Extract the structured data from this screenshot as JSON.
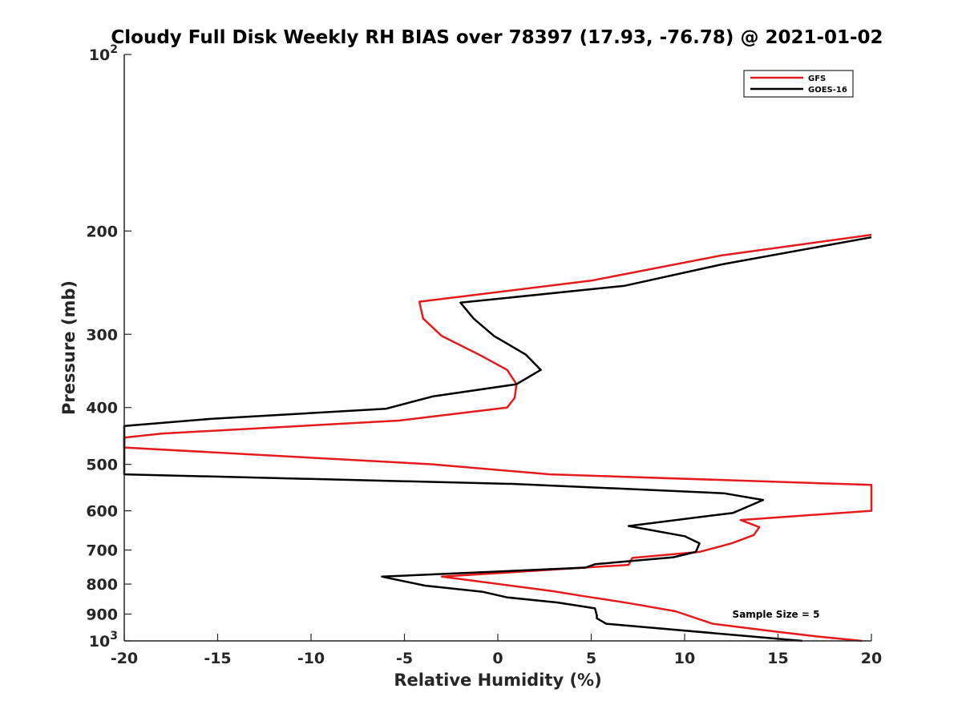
{
  "chart_data": {
    "type": "line",
    "title": "Cloudy Full Disk Weekly RH BIAS over 78397 (17.93, -76.78) @ 2021-01-02",
    "xlabel": "Relative Humidity (%)",
    "ylabel": "Pressure (mb)",
    "xlim": [
      -20,
      20
    ],
    "ylim": [
      100,
      1000
    ],
    "yscale": "log",
    "y_inverted": true,
    "x_ticks": [
      -20,
      -15,
      -10,
      -5,
      0,
      5,
      10,
      15,
      20
    ],
    "x_tick_labels": [
      "-20",
      "-15",
      "-10",
      "-5",
      "0",
      "5",
      "10",
      "15",
      "20"
    ],
    "y_ticks": [
      100,
      200,
      300,
      400,
      500,
      600,
      700,
      800,
      900,
      1000
    ],
    "y_tick_labels": [
      {
        "base": "10",
        "exp": "2"
      },
      {
        "base": "200",
        "exp": ""
      },
      {
        "base": "300",
        "exp": ""
      },
      {
        "base": "400",
        "exp": ""
      },
      {
        "base": "500",
        "exp": ""
      },
      {
        "base": "600",
        "exp": ""
      },
      {
        "base": "700",
        "exp": ""
      },
      {
        "base": "800",
        "exp": ""
      },
      {
        "base": "900",
        "exp": ""
      },
      {
        "base": "10",
        "exp": "3"
      }
    ],
    "grid": false,
    "legend_position": "top-right",
    "annotation": "Sample Size = 5",
    "series": [
      {
        "name": "GFS",
        "color": "#e41a1c",
        "points": [
          [
            20,
            203
          ],
          [
            12,
            220
          ],
          [
            5,
            243
          ],
          [
            -4.2,
            264
          ],
          [
            -4,
            282
          ],
          [
            -3,
            302
          ],
          [
            -1,
            325
          ],
          [
            0.5,
            345
          ],
          [
            1,
            365
          ],
          [
            0.9,
            385
          ],
          [
            0.5,
            400
          ],
          [
            -5.3,
            421
          ],
          [
            -18,
            443
          ],
          [
            -20,
            450
          ],
          [
            -20,
            468
          ],
          [
            -3.5,
            500
          ],
          [
            2.8,
            520
          ],
          [
            20,
            542
          ],
          [
            20,
            600
          ],
          [
            13,
            622
          ],
          [
            14,
            640
          ],
          [
            13.7,
            660
          ],
          [
            12.5,
            682
          ],
          [
            10.8,
            705
          ],
          [
            7.2,
            722
          ],
          [
            7,
            742
          ],
          [
            -3,
            777
          ],
          [
            3,
            823
          ],
          [
            4.5,
            838
          ],
          [
            7,
            862
          ],
          [
            9.5,
            890
          ],
          [
            11.5,
            935
          ],
          [
            15,
            965
          ],
          [
            17,
            982
          ],
          [
            19.5,
            1000
          ]
        ]
      },
      {
        "name": "GOES-16",
        "color": "#000000",
        "points": [
          [
            20,
            205
          ],
          [
            12,
            228
          ],
          [
            6.8,
            248
          ],
          [
            -2,
            265
          ],
          [
            -1.3,
            282
          ],
          [
            -0.2,
            302
          ],
          [
            1.5,
            325
          ],
          [
            2.3,
            345
          ],
          [
            1,
            365
          ],
          [
            -3.5,
            383
          ],
          [
            -6,
            402
          ],
          [
            -15.3,
            418
          ],
          [
            -20,
            430
          ],
          [
            -20,
            520
          ],
          [
            0.9,
            540
          ],
          [
            12.1,
            560
          ],
          [
            14.2,
            575
          ],
          [
            12.6,
            605
          ],
          [
            7,
            637
          ],
          [
            10,
            663
          ],
          [
            10.8,
            682
          ],
          [
            10.6,
            705
          ],
          [
            9.4,
            720
          ],
          [
            5.2,
            740
          ],
          [
            4.7,
            750
          ],
          [
            -6.2,
            777
          ],
          [
            -3.9,
            805
          ],
          [
            -0.8,
            825
          ],
          [
            0.5,
            843
          ],
          [
            3.2,
            860
          ],
          [
            5.2,
            880
          ],
          [
            5.3,
            905
          ],
          [
            5.3,
            915
          ],
          [
            5.8,
            935
          ],
          [
            16.3,
            1000
          ]
        ]
      }
    ]
  }
}
